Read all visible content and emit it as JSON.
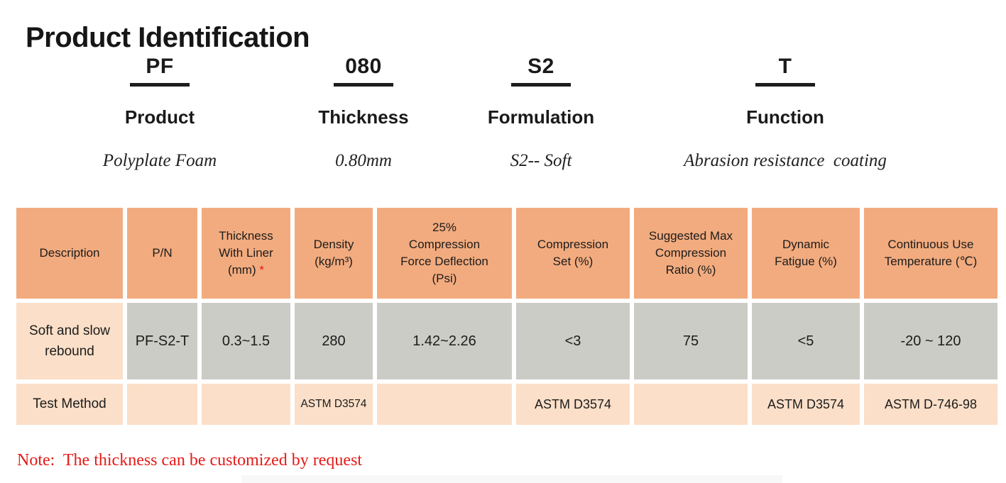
{
  "title": "Product Identification",
  "code_breakdown": {
    "items": [
      {
        "code": "PF",
        "label": "Product",
        "meaning": "Polyplate Foam"
      },
      {
        "code": "080",
        "label": "Thickness",
        "meaning": "0.80mm"
      },
      {
        "code": "S2",
        "label": "Formulation",
        "meaning": "S2-- Soft"
      },
      {
        "code": "T",
        "label": "Function",
        "meaning": "Abrasion resistance  coating"
      }
    ]
  },
  "spec_table": {
    "required_marker": "*",
    "headers": [
      "Description",
      "P/N",
      "Thickness\nWith Liner\n(mm)",
      "Density\n(kg/m³)",
      "25%\nCompression\nForce Deflection\n(Psi)",
      "Compression\nSet (%)",
      "Suggested Max\nCompression\nRatio (%)",
      "Dynamic\nFatigue (%)",
      "Continuous Use\nTemperature (℃)"
    ],
    "rows": [
      {
        "label": "Soft and slow rebound",
        "values": [
          "PF-S2-T",
          "0.3~1.5",
          "280",
          "1.42~2.26",
          "<3",
          "75",
          "<5",
          "-20 ~ 120"
        ]
      },
      {
        "label": "Test Method",
        "values": [
          "",
          "",
          "ASTM D3574",
          "",
          "ASTM D3574",
          "",
          "ASTM D3574",
          "ASTM D-746-98"
        ]
      }
    ]
  },
  "note": "Note:  The thickness can be customized by request",
  "colors": {
    "header_bg": "#F2AB7E",
    "value_bg": "#CBCCC6",
    "label_bg": "#FBDFC8",
    "note_red": "#E41A17",
    "text": "#1C1C1C"
  }
}
